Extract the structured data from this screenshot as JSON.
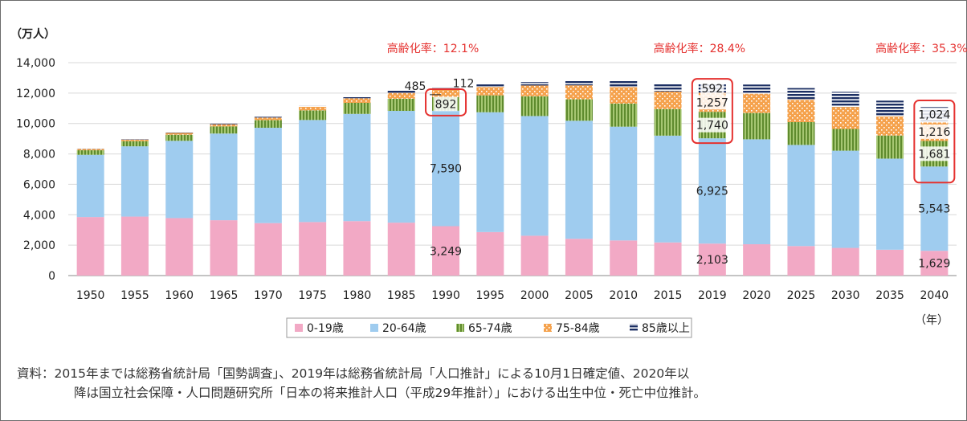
{
  "chart_data": {
    "type": "bar",
    "stacked": true,
    "unit_label": "（万人）",
    "x_unit_label": "（年）",
    "categories": [
      "1950",
      "1955",
      "1960",
      "1965",
      "1970",
      "1975",
      "1980",
      "1985",
      "1990",
      "1995",
      "2000",
      "2005",
      "2010",
      "2015",
      "2019",
      "2020",
      "2025",
      "2030",
      "2035",
      "2040"
    ],
    "ylim": [
      0,
      14000
    ],
    "yticks": [
      "0",
      "2,000",
      "4,000",
      "6,000",
      "8,000",
      "10,000",
      "12,000",
      "14,000"
    ],
    "legend_position": "bottom",
    "series": [
      {
        "name": "0-19歳",
        "color": "#f2a9c5",
        "values": [
          3850,
          3880,
          3780,
          3640,
          3450,
          3520,
          3580,
          3480,
          3249,
          2860,
          2620,
          2420,
          2310,
          2180,
          2103,
          2060,
          1940,
          1820,
          1700,
          1629
        ]
      },
      {
        "name": "20-64歳",
        "color": "#9fccef",
        "values": [
          4090,
          4620,
          5080,
          5700,
          6270,
          6710,
          7050,
          7350,
          7590,
          7880,
          7870,
          7760,
          7480,
          7020,
          6925,
          6900,
          6650,
          6390,
          5990,
          5543
        ]
      },
      {
        "name": "65-74歳",
        "color": "#8db654",
        "values": [
          300,
          340,
          400,
          470,
          500,
          630,
          730,
          800,
          892,
          1110,
          1300,
          1410,
          1520,
          1750,
          1740,
          1730,
          1500,
          1430,
          1520,
          1681
        ]
      },
      {
        "name": "75-84歳",
        "color": "#f5a24d",
        "values": [
          90,
          100,
          120,
          140,
          170,
          240,
          300,
          380,
          485,
          550,
          710,
          920,
          1080,
          1160,
          1257,
          1270,
          1470,
          1450,
          1250,
          1216
        ]
      },
      {
        "name": "85歳以上",
        "color": "#1c2f63",
        "values": [
          10,
          20,
          30,
          40,
          50,
          80,
          110,
          160,
          112,
          170,
          220,
          340,
          410,
          500,
          592,
          600,
          770,
          990,
          1040,
          1024
        ]
      }
    ],
    "data_labels": [
      {
        "year": "1990",
        "series": "0-19歳",
        "text": "3,249"
      },
      {
        "year": "1990",
        "series": "20-64歳",
        "text": "7,590"
      },
      {
        "year": "1990",
        "series": "65-74歳",
        "text": "892"
      },
      {
        "year": "1990",
        "series": "75-84歳",
        "text": "485"
      },
      {
        "year": "1990",
        "series": "85歳以上",
        "text": "112"
      },
      {
        "year": "2019",
        "series": "0-19歳",
        "text": "2,103"
      },
      {
        "year": "2019",
        "series": "20-64歳",
        "text": "6,925"
      },
      {
        "year": "2019",
        "series": "65-74歳",
        "text": "1,740"
      },
      {
        "year": "2019",
        "series": "75-84歳",
        "text": "1,257"
      },
      {
        "year": "2019",
        "series": "85歳以上",
        "text": "592"
      },
      {
        "year": "2040",
        "series": "0-19歳",
        "text": "1,629"
      },
      {
        "year": "2040",
        "series": "20-64歳",
        "text": "5,543"
      },
      {
        "year": "2040",
        "series": "65-74歳",
        "text": "1,681"
      },
      {
        "year": "2040",
        "series": "75-84歳",
        "text": "1,216"
      },
      {
        "year": "2040",
        "series": "85歳以上",
        "text": "1,024"
      }
    ],
    "annotations": [
      {
        "year": "1990",
        "text": "高齢化率：12.1%"
      },
      {
        "year": "2019",
        "text": "高齢化率：28.4%"
      },
      {
        "year": "2040",
        "text": "高齢化率：35.3%"
      }
    ],
    "annotation_color": "#e5312f"
  },
  "note": {
    "line1": "資料：2015年までは総務省統計局「国勢調査」、2019年は総務省統計局「人口推計」による10月1日確定値、2020年以",
    "line2": "降は国立社会保障・人口問題研究所「日本の将来推計人口（平成29年推計）」における出生中位・死亡中位推計。"
  }
}
